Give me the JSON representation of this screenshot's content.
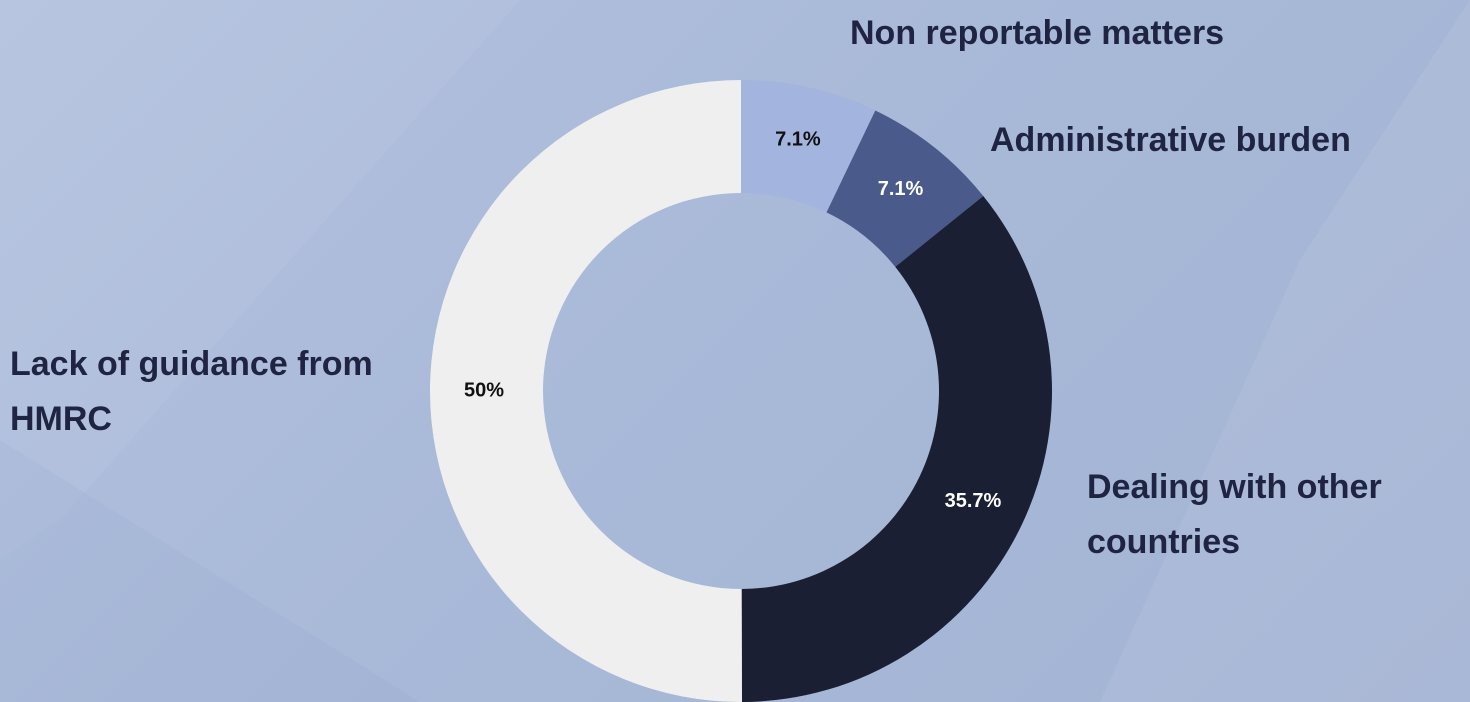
{
  "chart_data": {
    "type": "donut",
    "categories": [
      "Non reportable matters",
      "Administrative burden",
      "Dealing with other countries",
      "Lack of guidance from HMRC"
    ],
    "values": [
      7.1,
      7.1,
      35.7,
      50
    ],
    "value_labels": [
      "7.1%",
      "7.1%",
      "35.7%",
      "50%"
    ],
    "colors": [
      "#a3b4df",
      "#4a5a8a",
      "#1a1f33",
      "#efefef"
    ]
  }
}
